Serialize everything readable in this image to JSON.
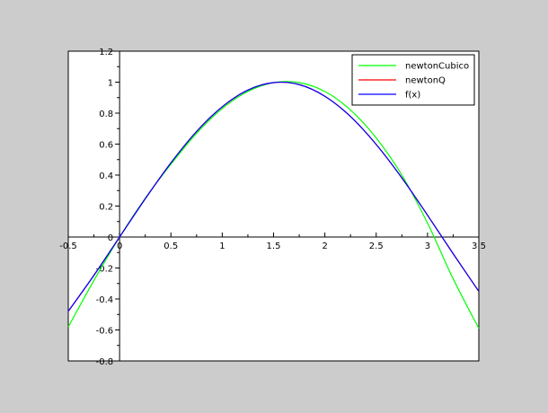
{
  "chart_data": {
    "type": "line",
    "title": "",
    "xlabel": "",
    "ylabel": "",
    "xlim": [
      -0.5,
      3.5
    ],
    "ylim": [
      -0.8,
      1.2
    ],
    "x_ticks": [
      -0.5,
      0,
      0.5,
      1,
      1.5,
      2,
      2.5,
      3,
      3.5
    ],
    "x_tick_labels": [
      "-0.5",
      "0",
      "0.5",
      "1",
      "1.5",
      "2",
      "2.5",
      "3",
      "3.5"
    ],
    "y_ticks": [
      -0.8,
      -0.6,
      -0.4,
      -0.2,
      0,
      0.2,
      0.4,
      0.6,
      0.8,
      1,
      1.2
    ],
    "y_tick_labels": [
      "-0.8",
      "-0.6",
      "-0.4",
      "-0.2",
      "0",
      "0.2",
      "0.4",
      "0.6",
      "0.8",
      "1",
      "1.2"
    ],
    "axes_through_origin": true,
    "grid": false,
    "legend_position": "top-right",
    "x": [
      -0.5,
      -0.25,
      0,
      0.25,
      0.5,
      0.75,
      1,
      1.25,
      1.5,
      1.75,
      2,
      2.25,
      2.5,
      2.75,
      3,
      3.25,
      3.5
    ],
    "series": [
      {
        "name": "newtonCubico",
        "color": "#00ff00",
        "values": [
          -0.58,
          -0.28,
          0.0,
          0.25,
          0.47,
          0.67,
          0.83,
          0.94,
          0.997,
          0.997,
          0.94,
          0.82,
          0.64,
          0.4,
          0.09,
          -0.27,
          -0.59
        ]
      },
      {
        "name": "newtonQ",
        "color": "#ff0000",
        "values": [
          -0.48,
          -0.247,
          0.0,
          0.247,
          0.479,
          0.681,
          0.841,
          0.949,
          0.997,
          0.984,
          0.909,
          0.778,
          0.598,
          0.382,
          0.141,
          -0.108,
          -0.351
        ]
      },
      {
        "name": "f(x)",
        "color": "#0000ff",
        "values": [
          -0.479,
          -0.247,
          0.0,
          0.247,
          0.479,
          0.682,
          0.841,
          0.949,
          0.997,
          0.984,
          0.909,
          0.778,
          0.598,
          0.382,
          0.141,
          -0.108,
          -0.351
        ]
      }
    ]
  }
}
